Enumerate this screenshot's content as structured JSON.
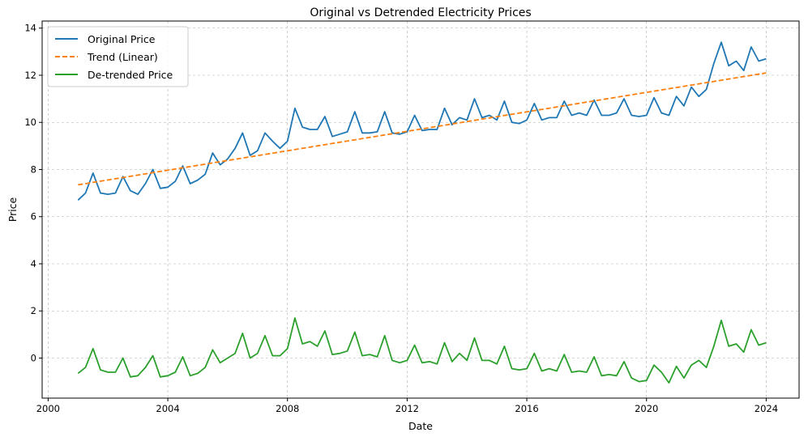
{
  "chart_data": {
    "type": "line",
    "title": "Original vs Detrended Electricity Prices",
    "xlabel": "Date",
    "ylabel": "Price",
    "xlim": [
      1999.8,
      2025.1
    ],
    "ylim": [
      -1.7,
      14.3
    ],
    "x_ticks": [
      2000,
      2004,
      2008,
      2012,
      2016,
      2020,
      2024
    ],
    "y_ticks": [
      0,
      2,
      4,
      6,
      8,
      10,
      12,
      14
    ],
    "grid": true,
    "legend_position": "top-left",
    "series": [
      {
        "name": "Original Price",
        "color": "#1f77b4",
        "dash": "solid",
        "x": [
          2001.0,
          2001.25,
          2001.5,
          2001.75,
          2002.0,
          2002.25,
          2002.5,
          2002.75,
          2003.0,
          2003.25,
          2003.5,
          2003.75,
          2004.0,
          2004.25,
          2004.5,
          2004.75,
          2005.0,
          2005.25,
          2005.5,
          2005.75,
          2006.0,
          2006.25,
          2006.5,
          2006.75,
          2007.0,
          2007.25,
          2007.5,
          2007.75,
          2008.0,
          2008.25,
          2008.5,
          2008.75,
          2009.0,
          2009.25,
          2009.5,
          2009.75,
          2010.0,
          2010.25,
          2010.5,
          2010.75,
          2011.0,
          2011.25,
          2011.5,
          2011.75,
          2012.0,
          2012.25,
          2012.5,
          2012.75,
          2013.0,
          2013.25,
          2013.5,
          2013.75,
          2014.0,
          2014.25,
          2014.5,
          2014.75,
          2015.0,
          2015.25,
          2015.5,
          2015.75,
          2016.0,
          2016.25,
          2016.5,
          2016.75,
          2017.0,
          2017.25,
          2017.5,
          2017.75,
          2018.0,
          2018.25,
          2018.5,
          2018.75,
          2019.0,
          2019.25,
          2019.5,
          2019.75,
          2020.0,
          2020.25,
          2020.5,
          2020.75,
          2021.0,
          2021.25,
          2021.5,
          2021.75,
          2022.0,
          2022.25,
          2022.5,
          2022.75,
          2023.0,
          2023.25,
          2023.5,
          2023.75,
          2024.0
        ],
        "values": [
          6.7,
          7.0,
          7.85,
          7.0,
          6.95,
          7.0,
          7.7,
          7.1,
          6.95,
          7.4,
          8.0,
          7.2,
          7.25,
          7.5,
          8.15,
          7.4,
          7.55,
          7.8,
          8.7,
          8.2,
          8.45,
          8.9,
          9.55,
          8.6,
          8.8,
          9.55,
          9.2,
          8.9,
          9.2,
          10.6,
          9.8,
          9.7,
          9.7,
          10.25,
          9.4,
          9.5,
          9.6,
          10.45,
          9.55,
          9.55,
          9.6,
          10.45,
          9.55,
          9.5,
          9.6,
          10.3,
          9.65,
          9.7,
          9.7,
          10.6,
          9.9,
          10.2,
          10.1,
          11.0,
          10.2,
          10.3,
          10.1,
          10.9,
          10.0,
          9.95,
          10.1,
          10.8,
          10.1,
          10.2,
          10.2,
          10.9,
          10.3,
          10.4,
          10.3,
          10.95,
          10.3,
          10.3,
          10.4,
          11.0,
          10.3,
          10.25,
          10.3,
          11.05,
          10.4,
          10.3,
          11.1,
          10.7,
          11.5,
          11.1,
          11.4,
          12.5,
          13.4,
          12.4,
          12.6,
          12.2,
          13.2,
          12.6,
          12.7
        ]
      },
      {
        "name": "Trend (Linear)",
        "color": "#ff7f0e",
        "dash": "dashed",
        "x": [
          2001.0,
          2024.0
        ],
        "values": [
          7.35,
          12.1
        ]
      },
      {
        "name": "De-trended Price",
        "color": "#2ca02c",
        "dash": "solid",
        "x": [
          2001.0,
          2001.25,
          2001.5,
          2001.75,
          2002.0,
          2002.25,
          2002.5,
          2002.75,
          2003.0,
          2003.25,
          2003.5,
          2003.75,
          2004.0,
          2004.25,
          2004.5,
          2004.75,
          2005.0,
          2005.25,
          2005.5,
          2005.75,
          2006.0,
          2006.25,
          2006.5,
          2006.75,
          2007.0,
          2007.25,
          2007.5,
          2007.75,
          2008.0,
          2008.25,
          2008.5,
          2008.75,
          2009.0,
          2009.25,
          2009.5,
          2009.75,
          2010.0,
          2010.25,
          2010.5,
          2010.75,
          2011.0,
          2011.25,
          2011.5,
          2011.75,
          2012.0,
          2012.25,
          2012.5,
          2012.75,
          2013.0,
          2013.25,
          2013.5,
          2013.75,
          2014.0,
          2014.25,
          2014.5,
          2014.75,
          2015.0,
          2015.25,
          2015.5,
          2015.75,
          2016.0,
          2016.25,
          2016.5,
          2016.75,
          2017.0,
          2017.25,
          2017.5,
          2017.75,
          2018.0,
          2018.25,
          2018.5,
          2018.75,
          2019.0,
          2019.25,
          2019.5,
          2019.75,
          2020.0,
          2020.25,
          2020.5,
          2020.75,
          2021.0,
          2021.25,
          2021.5,
          2021.75,
          2022.0,
          2022.25,
          2022.5,
          2022.75,
          2023.0,
          2023.25,
          2023.5,
          2023.75,
          2024.0
        ],
        "values": [
          -0.65,
          -0.4,
          0.4,
          -0.5,
          -0.6,
          -0.6,
          0.0,
          -0.8,
          -0.75,
          -0.4,
          0.1,
          -0.8,
          -0.75,
          -0.6,
          0.05,
          -0.75,
          -0.65,
          -0.4,
          0.35,
          -0.2,
          0.0,
          0.2,
          1.05,
          0.0,
          0.2,
          0.95,
          0.1,
          0.1,
          0.4,
          1.7,
          0.6,
          0.7,
          0.5,
          1.15,
          0.15,
          0.2,
          0.3,
          1.1,
          0.1,
          0.15,
          0.05,
          0.95,
          -0.1,
          -0.2,
          -0.1,
          0.55,
          -0.2,
          -0.15,
          -0.25,
          0.65,
          -0.15,
          0.2,
          -0.1,
          0.85,
          -0.1,
          -0.1,
          -0.25,
          0.5,
          -0.45,
          -0.5,
          -0.45,
          0.2,
          -0.55,
          -0.45,
          -0.55,
          0.15,
          -0.6,
          -0.55,
          -0.6,
          0.05,
          -0.75,
          -0.7,
          -0.75,
          -0.15,
          -0.85,
          -1.0,
          -0.95,
          -0.3,
          -0.6,
          -1.05,
          -0.35,
          -0.85,
          -0.3,
          -0.1,
          -0.4,
          0.5,
          1.6,
          0.5,
          0.6,
          0.25,
          1.2,
          0.55,
          0.65
        ]
      }
    ]
  }
}
